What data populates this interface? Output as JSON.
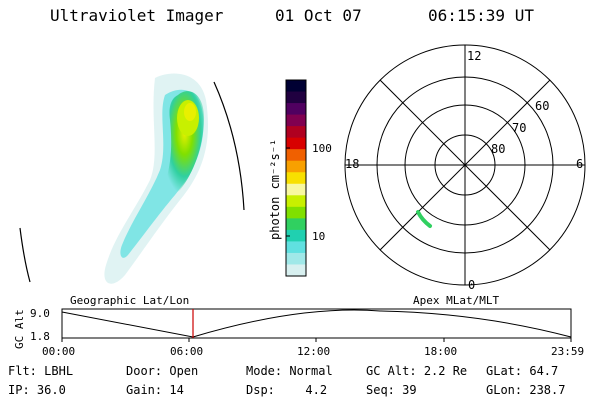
{
  "header": {
    "instrument": "Ultraviolet Imager",
    "date": "01 Oct 07",
    "time": "06:15:39 UT"
  },
  "colorbar": {
    "unit_label": "photon cm⁻²s⁻¹",
    "tick_labels": [
      "100",
      "10"
    ],
    "colors": [
      "#000033",
      "#200040",
      "#500060",
      "#800050",
      "#b00020",
      "#d80000",
      "#f06000",
      "#f8a000",
      "#f8e000",
      "#f8f8a0",
      "#c8f000",
      "#80e000",
      "#30d060",
      "#20d0b0",
      "#60e0e0",
      "#a0e8e8",
      "#d8f0f0"
    ]
  },
  "polar_plot": {
    "mlt_labels": [
      "12",
      "18",
      "6",
      "0"
    ],
    "lat_labels": [
      "60",
      "70",
      "80"
    ]
  },
  "timeline": {
    "left_label": "Geographic Lat/Lon",
    "right_label": "Apex MLat/MLT",
    "y_axis_label": "GC Alt",
    "y_ticks": [
      "9.0",
      "1.8"
    ],
    "x_ticks": [
      "00:00",
      "06:00",
      "12:00",
      "18:00",
      "23:59"
    ],
    "current_time_marker_color": "#cc0000"
  },
  "footer": {
    "flt_label": "Flt:",
    "flt_value": "LBHL",
    "ip_label": "IP:",
    "ip_value": "36.0",
    "door_label": "Door:",
    "door_value": "Open",
    "gain_label": "Gain:",
    "gain_value": "14",
    "mode_label": "Mode:",
    "mode_value": "Normal",
    "dsp_label": "Dsp:",
    "dsp_value": "4.2",
    "gcalt_label": "GC Alt:",
    "gcalt_value": "2.2 Re",
    "seq_label": "Seq:",
    "seq_value": "39",
    "glat_label": "GLat:",
    "glat_value": "64.7",
    "glon_label": "GLon:",
    "glon_value": "238.7"
  }
}
